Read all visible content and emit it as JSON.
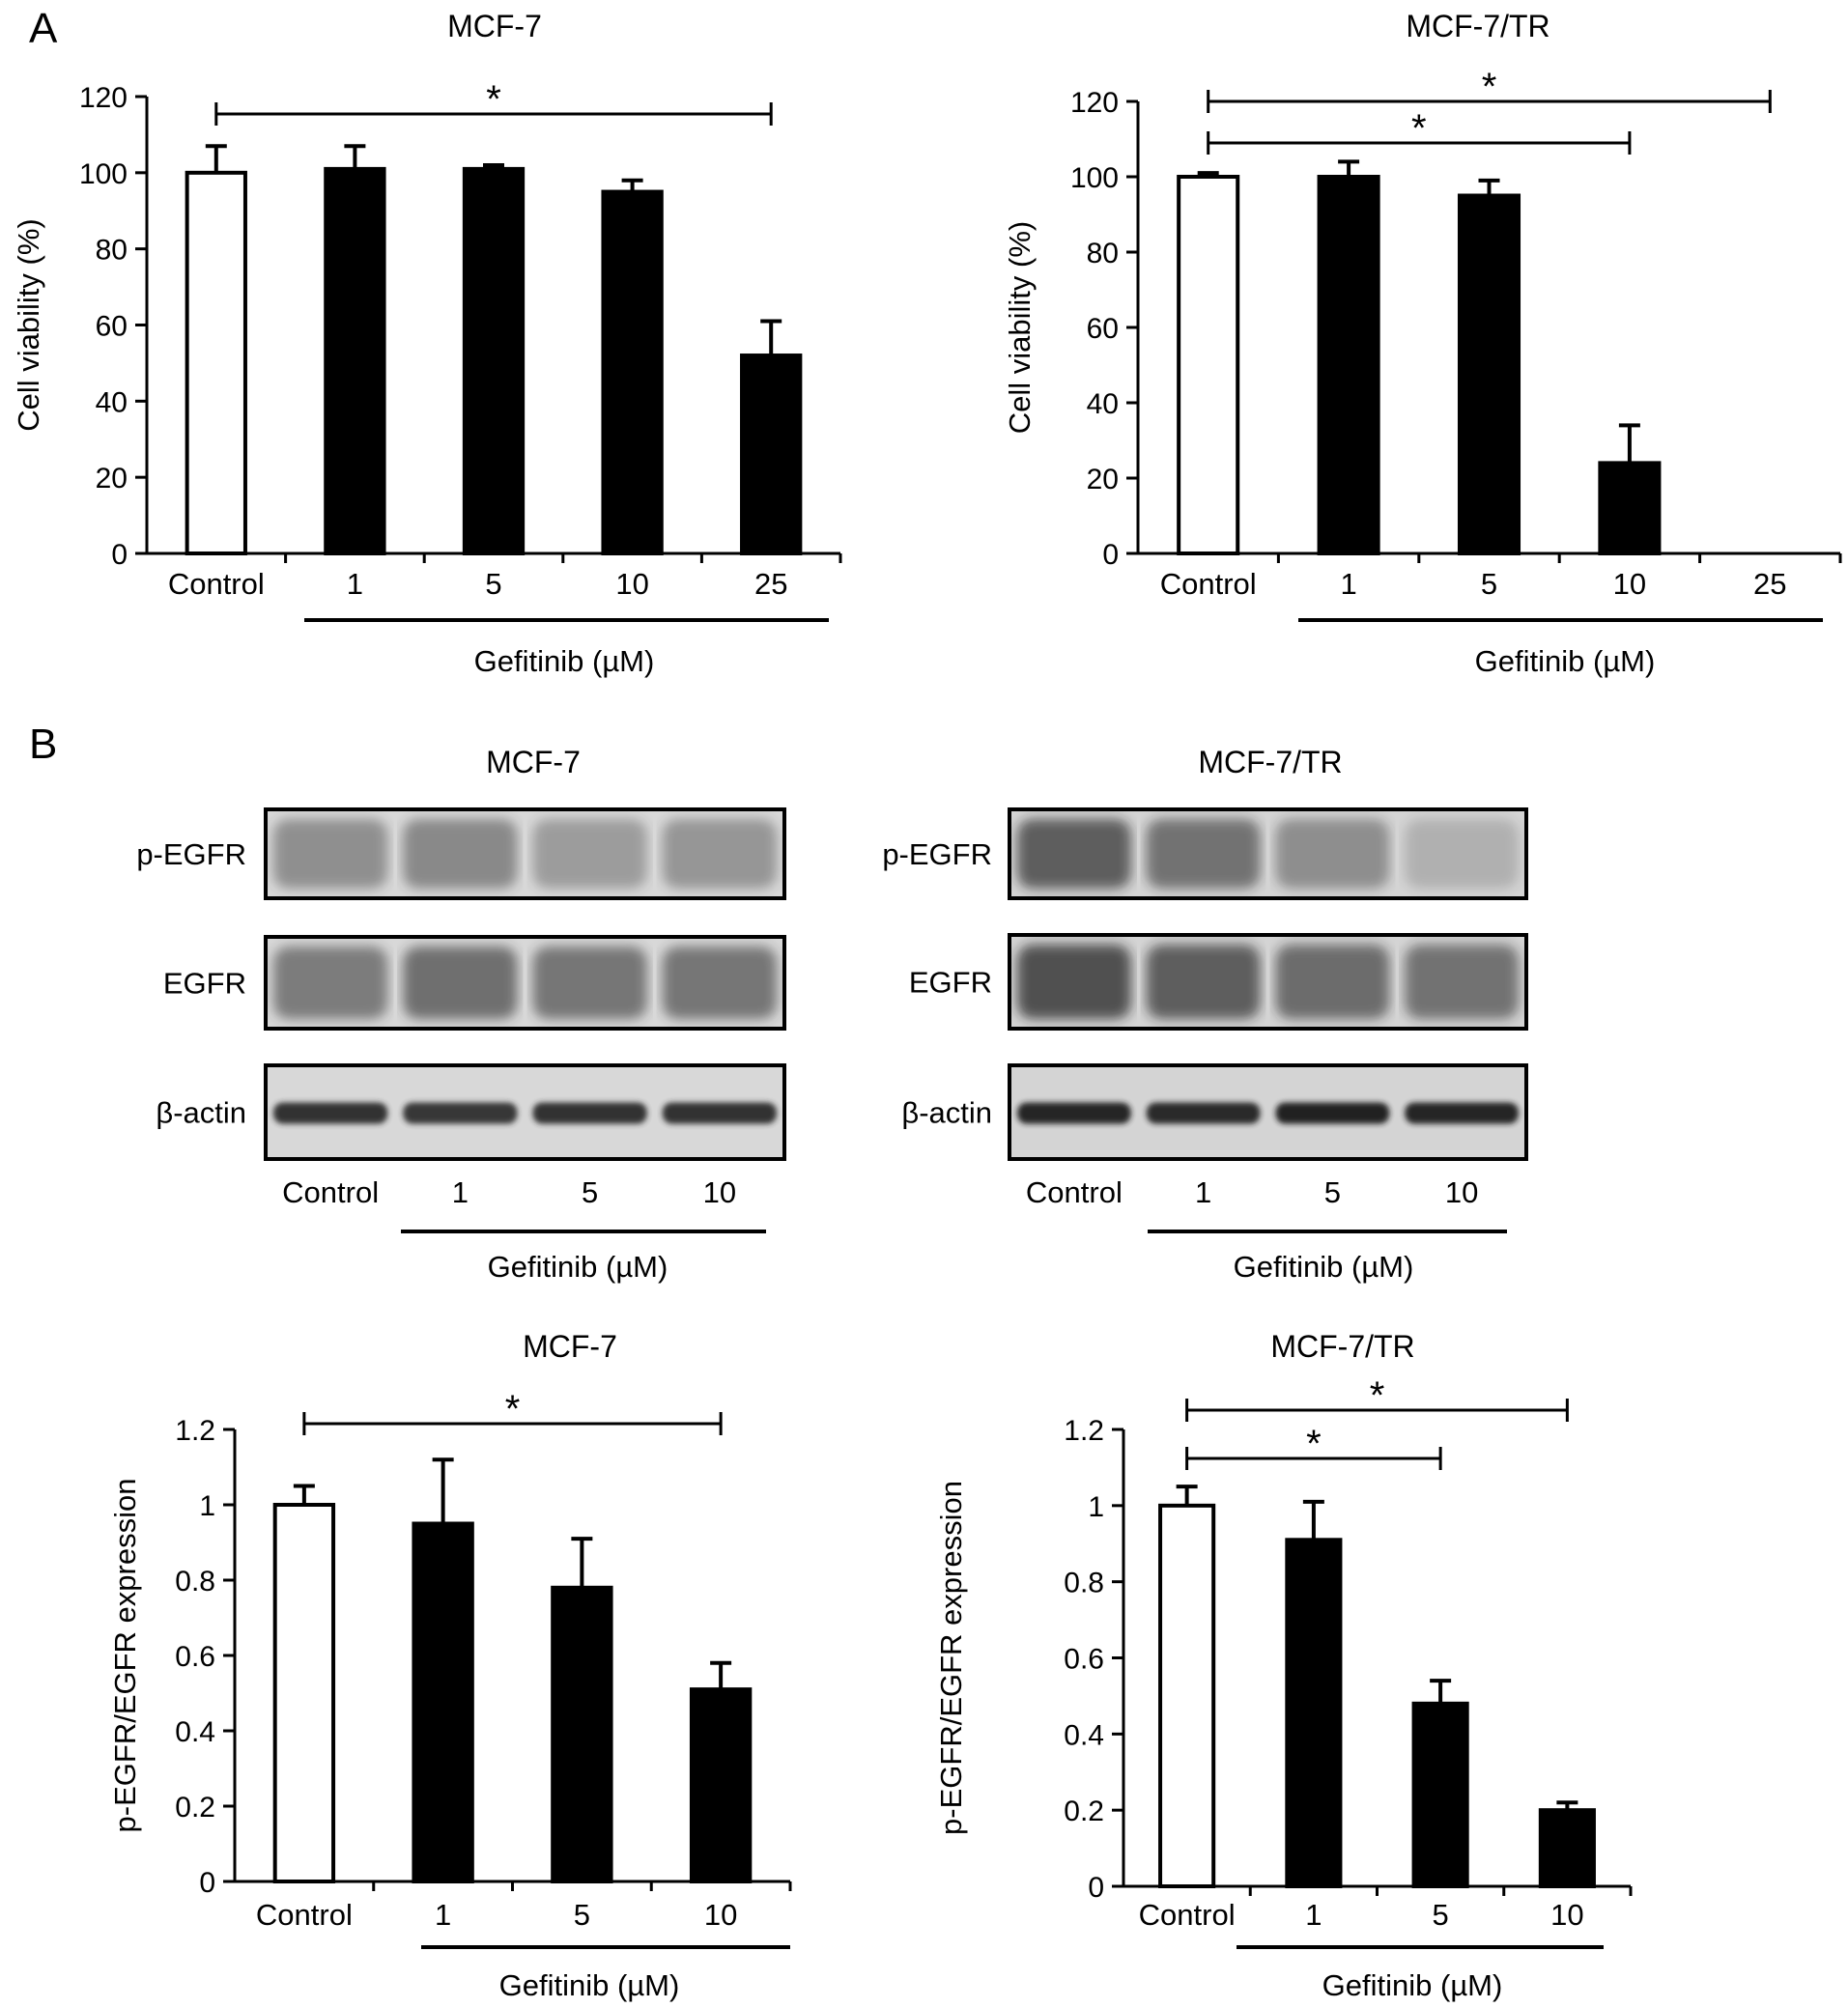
{
  "panel_labels": [
    "A",
    "B"
  ],
  "chart_data": [
    {
      "type": "bar",
      "title": "MCF-7",
      "ylabel": "Cell viability (%)",
      "group_label": "Gefitinib (µM)",
      "categories": [
        "Control",
        "1",
        "5",
        "10",
        "25"
      ],
      "values": [
        100,
        101,
        101,
        95,
        52
      ],
      "errors": [
        7,
        6,
        1,
        3,
        9
      ],
      "ylim": [
        0,
        120
      ],
      "yticks": [
        "0",
        "20",
        "40",
        "60",
        "80",
        "100",
        "120"
      ],
      "significance": [
        {
          "from": "Control",
          "to": "25",
          "label": "*"
        }
      ]
    },
    {
      "type": "bar",
      "title": "MCF-7/TR",
      "ylabel": "Cell viability (%)",
      "group_label": "Gefitinib (µM)",
      "categories": [
        "Control",
        "1",
        "5",
        "10",
        "25"
      ],
      "values": [
        100,
        100,
        95,
        24,
        0
      ],
      "errors": [
        1,
        4,
        4,
        10,
        0
      ],
      "ylim": [
        0,
        120
      ],
      "yticks": [
        "0",
        "20",
        "40",
        "60",
        "80",
        "100",
        "120"
      ],
      "significance": [
        {
          "from": "Control",
          "to": "25",
          "label": "*"
        },
        {
          "from": "Control",
          "to": "10",
          "label": "*"
        }
      ]
    },
    {
      "type": "bar",
      "title": "MCF-7",
      "ylabel": "p-EGFR/EGFR expression",
      "group_label": "Gefitinib (µM)",
      "categories": [
        "Control",
        "1",
        "5",
        "10"
      ],
      "values": [
        1.0,
        0.95,
        0.78,
        0.51
      ],
      "errors": [
        0.05,
        0.17,
        0.13,
        0.07
      ],
      "ylim": [
        0,
        1.2
      ],
      "yticks": [
        "0",
        "0.2",
        "0.4",
        "0.6",
        "0.8",
        "1",
        "1.2"
      ],
      "significance": [
        {
          "from": "Control",
          "to": "10",
          "label": "*"
        }
      ]
    },
    {
      "type": "bar",
      "title": "MCF-7/TR",
      "ylabel": "p-EGFR/EGFR expression",
      "group_label": "Gefitinib (µM)",
      "categories": [
        "Control",
        "1",
        "5",
        "10"
      ],
      "values": [
        1.0,
        0.91,
        0.48,
        0.2
      ],
      "errors": [
        0.05,
        0.1,
        0.06,
        0.02
      ],
      "ylim": [
        0,
        1.2
      ],
      "yticks": [
        "0",
        "0.2",
        "0.4",
        "0.6",
        "0.8",
        "1",
        "1.2"
      ],
      "significance": [
        {
          "from": "Control",
          "to": "10",
          "label": "*"
        },
        {
          "from": "Control",
          "to": "5",
          "label": "*"
        }
      ]
    }
  ],
  "blots": [
    {
      "title": "MCF-7",
      "rows": [
        "p-EGFR",
        "EGFR",
        "β-actin"
      ],
      "lanes": [
        "Control",
        "1",
        "5",
        "10"
      ],
      "group_label": "Gefitinib (µM)",
      "colors": {
        "band": "#2a2a2a",
        "background": "#d8d8d8"
      }
    },
    {
      "title": "MCF-7/TR",
      "rows": [
        "p-EGFR",
        "EGFR",
        "β-actin"
      ],
      "lanes": [
        "Control",
        "1",
        "5",
        "10"
      ],
      "group_label": "Gefitinib (µM)",
      "colors": {
        "band": "#1e1e1e",
        "background": "#d4d4d4"
      }
    }
  ]
}
